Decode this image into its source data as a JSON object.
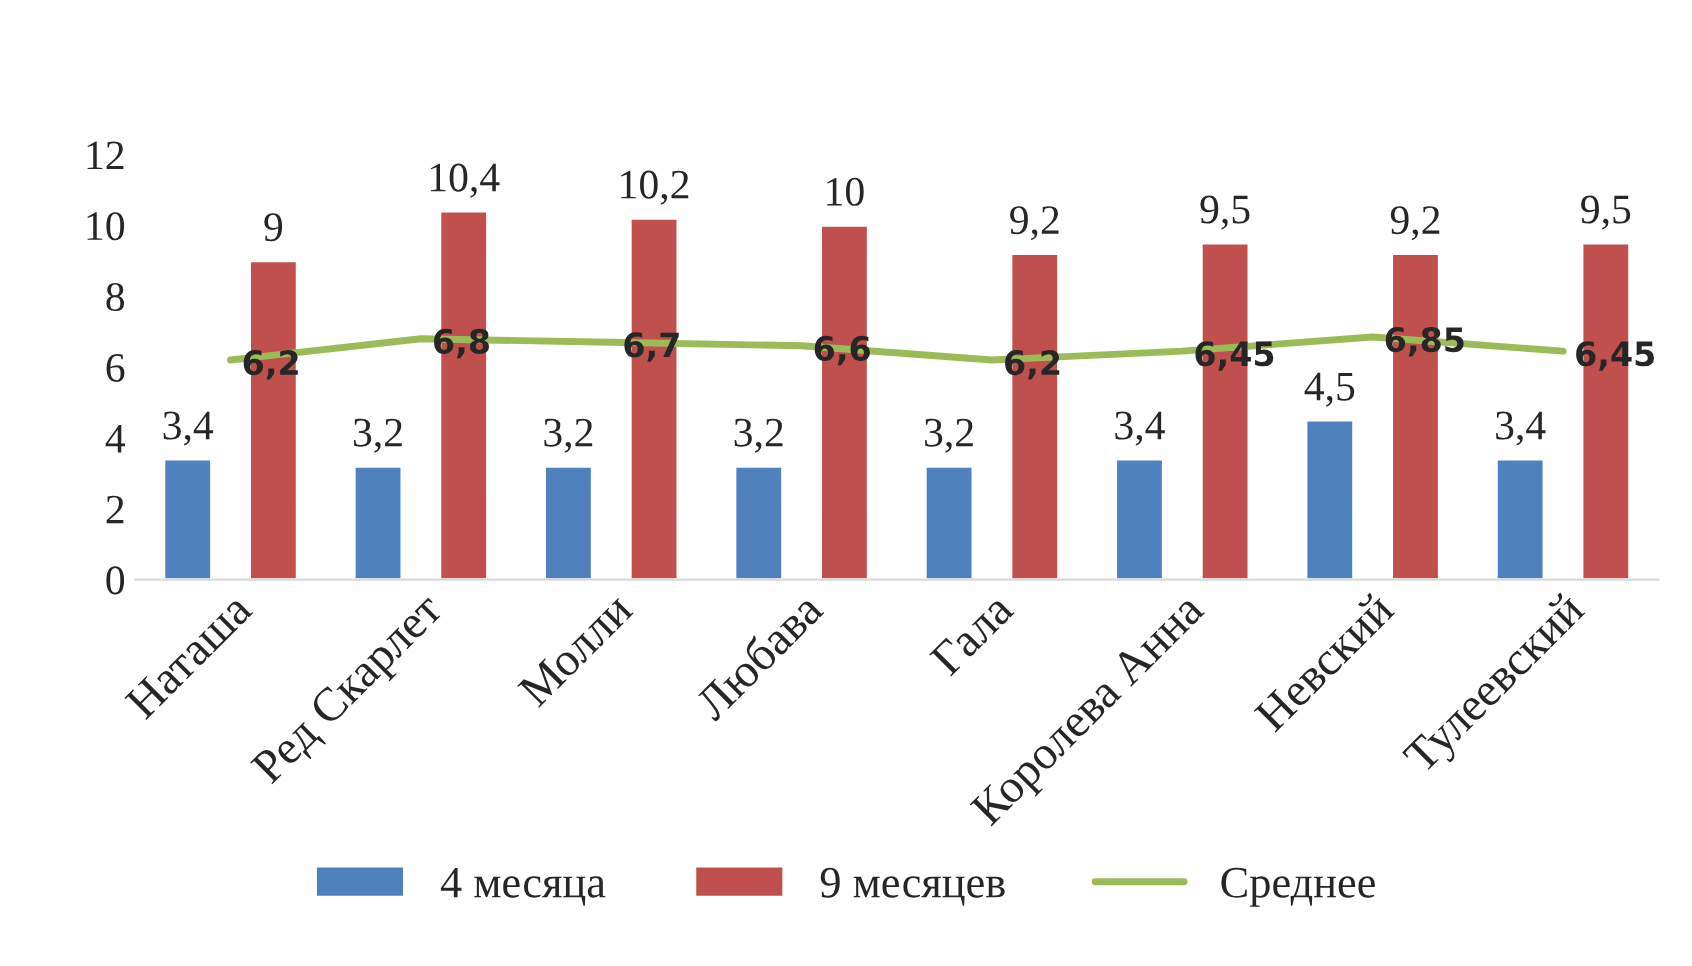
{
  "chart_data": {
    "type": "bar",
    "categories": [
      "Наташа",
      "Ред Скарлет",
      "Молли",
      "Любава",
      "Гала",
      "Королева Анна",
      "Невский",
      "Тулеевский"
    ],
    "series": [
      {
        "name": "4 месяца",
        "color": "#4f81bd",
        "values": [
          3.4,
          3.2,
          3.2,
          3.2,
          3.2,
          3.4,
          4.5,
          3.4
        ],
        "value_labels": [
          "3,4",
          "3,2",
          "3,2",
          "3,2",
          "3,2",
          "3,4",
          "4,5",
          "3,4"
        ]
      },
      {
        "name": "9 месяцев",
        "color": "#c0504d",
        "values": [
          9,
          10.4,
          10.2,
          10,
          9.2,
          9.5,
          9.2,
          9.5
        ],
        "value_labels": [
          "9",
          "10,4",
          "10,2",
          "10",
          "9,2",
          "9,5",
          "9,2",
          "9,5"
        ]
      },
      {
        "name": "Среднее",
        "type": "line",
        "color": "#9bbb59",
        "values": [
          6.2,
          6.8,
          6.7,
          6.6,
          6.2,
          6.45,
          6.85,
          6.45
        ],
        "value_labels": [
          "6,2",
          "6,8",
          "6,7",
          "6,6",
          "6,2",
          "6,45",
          "6,85",
          "6,45"
        ]
      }
    ],
    "ylim": [
      0,
      12
    ],
    "yticks": [
      0,
      2,
      4,
      6,
      8,
      10,
      12
    ],
    "grid": false,
    "legend": "bottom",
    "marker": "none"
  }
}
